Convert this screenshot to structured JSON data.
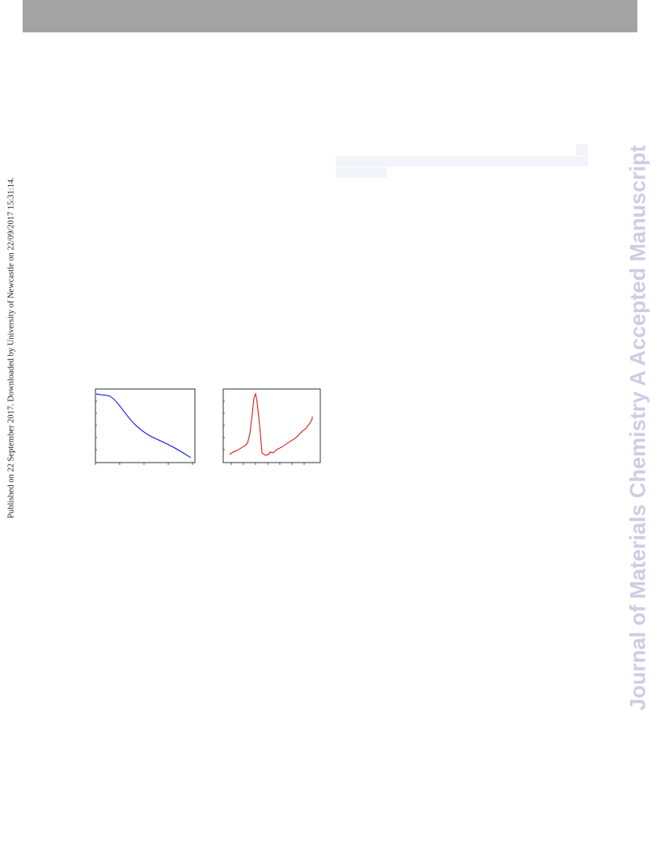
{
  "side_note": "Published on 22 September 2017. Downloaded by University of Newcastle on 22/09/2017 15:31:14.",
  "watermark": "Journal of Materials Chemistry A Accepted Manuscript"
}
